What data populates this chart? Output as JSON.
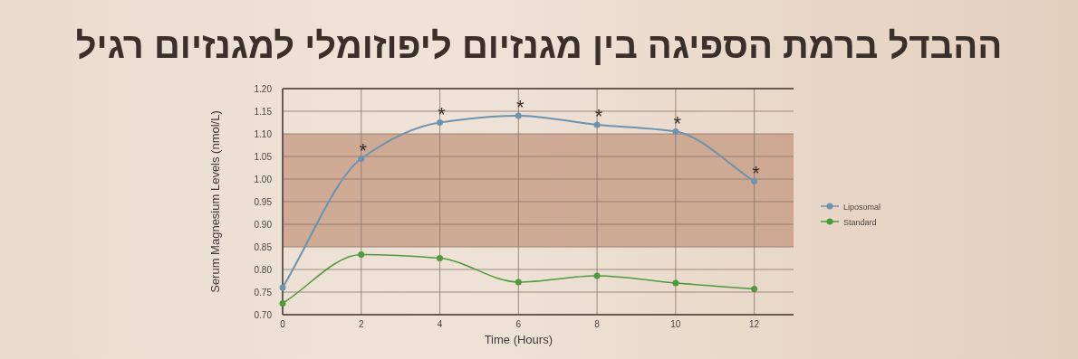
{
  "chart_data": {
    "type": "line",
    "title": "ההבדל ברמת הספיגה בין מגנזיום ליפוזומלי למגנזיום רגיל",
    "xlabel": "Time (Hours)",
    "ylabel": "Serum Magnesium Levels (nmol/L)",
    "x": [
      0,
      2,
      4,
      6,
      8,
      10,
      12
    ],
    "series": [
      {
        "name": "Liposomal",
        "color": "#6e93ad",
        "values": [
          0.76,
          1.045,
          1.125,
          1.14,
          1.12,
          1.105,
          0.995
        ]
      },
      {
        "name": "Standard",
        "color": "#4e9a3c",
        "values": [
          0.725,
          0.833,
          0.825,
          0.772,
          0.786,
          0.77,
          0.757
        ]
      }
    ],
    "xlim": [
      0,
      13
    ],
    "xticks": [
      0,
      2,
      4,
      6,
      8,
      10,
      12
    ],
    "ylim": [
      0.7,
      1.2
    ],
    "yticks": [
      {
        "value": 0.7,
        "label": "0.70"
      },
      {
        "value": 0.75,
        "label": "0.75"
      },
      {
        "value": 0.8,
        "label": "0.80"
      },
      {
        "value": 0.85,
        "label": "0.85"
      },
      {
        "value": 0.9,
        "label": "0.90"
      },
      {
        "value": 0.95,
        "label": "0.95"
      },
      {
        "value": 1.0,
        "label": "1.00"
      },
      {
        "value": 1.05,
        "label": "1.05"
      },
      {
        "value": 1.1,
        "label": "1.10"
      },
      {
        "value": 1.15,
        "label": "1.15"
      },
      {
        "value": 1.2,
        "label": "1.20"
      }
    ],
    "bands": [
      {
        "axis": "y",
        "from": 0.85,
        "to": 1.1,
        "color": "#c9a089"
      }
    ],
    "annotations": [
      {
        "text": "*",
        "x": 2,
        "y": 1.045
      },
      {
        "text": "*",
        "x": 4,
        "y": 1.125
      },
      {
        "text": "*",
        "x": 6,
        "y": 1.14
      },
      {
        "text": "*",
        "x": 8,
        "y": 1.12
      },
      {
        "text": "*",
        "x": 10,
        "y": 1.105
      },
      {
        "text": "*",
        "x": 12,
        "y": 0.995
      }
    ],
    "grid": true,
    "legend": "right",
    "marker": "circle",
    "line_style": "solid"
  }
}
